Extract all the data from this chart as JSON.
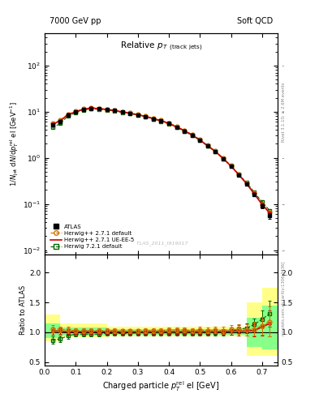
{
  "header_left": "7000 GeV pp",
  "header_right": "Soft QCD",
  "watermark": "ATLAS_2011_I919017",
  "right_label_top": "Rivet 3.1.10; ≥ 2.6M events",
  "right_label_bot": "mcplots.cern.ch [arXiv:1306.3436]",
  "atlas_x": [
    0.025,
    0.05,
    0.075,
    0.1,
    0.125,
    0.15,
    0.175,
    0.2,
    0.225,
    0.25,
    0.275,
    0.3,
    0.325,
    0.35,
    0.375,
    0.4,
    0.425,
    0.45,
    0.475,
    0.5,
    0.525,
    0.55,
    0.575,
    0.6,
    0.625,
    0.65,
    0.675,
    0.7,
    0.725
  ],
  "atlas_y": [
    5.2,
    6.2,
    8.5,
    9.8,
    11.2,
    11.8,
    11.5,
    11.0,
    10.5,
    9.8,
    9.2,
    8.5,
    7.8,
    7.0,
    6.3,
    5.5,
    4.6,
    3.8,
    3.1,
    2.4,
    1.8,
    1.35,
    0.95,
    0.65,
    0.42,
    0.27,
    0.16,
    0.09,
    0.055
  ],
  "atlas_yerr": [
    0.3,
    0.3,
    0.4,
    0.4,
    0.4,
    0.4,
    0.4,
    0.4,
    0.35,
    0.35,
    0.3,
    0.3,
    0.3,
    0.25,
    0.25,
    0.2,
    0.2,
    0.15,
    0.12,
    0.1,
    0.08,
    0.06,
    0.05,
    0.04,
    0.03,
    0.02,
    0.015,
    0.01,
    0.007
  ],
  "atlas_exl": [
    0.025,
    0.025,
    0.025,
    0.025,
    0.025,
    0.025,
    0.025,
    0.025,
    0.025,
    0.025,
    0.025,
    0.025,
    0.025,
    0.025,
    0.025,
    0.025,
    0.025,
    0.025,
    0.025,
    0.025,
    0.025,
    0.025,
    0.025,
    0.025,
    0.025,
    0.025,
    0.025,
    0.025,
    0.025
  ],
  "atlas_exr": [
    0.025,
    0.025,
    0.025,
    0.025,
    0.025,
    0.025,
    0.025,
    0.025,
    0.025,
    0.025,
    0.025,
    0.025,
    0.025,
    0.025,
    0.025,
    0.025,
    0.025,
    0.025,
    0.025,
    0.025,
    0.025,
    0.025,
    0.025,
    0.025,
    0.025,
    0.025,
    0.025,
    0.025,
    0.025
  ],
  "hw271_x": [
    0.025,
    0.05,
    0.075,
    0.1,
    0.125,
    0.15,
    0.175,
    0.2,
    0.225,
    0.25,
    0.275,
    0.3,
    0.325,
    0.35,
    0.375,
    0.4,
    0.425,
    0.45,
    0.475,
    0.5,
    0.525,
    0.55,
    0.575,
    0.6,
    0.625,
    0.65,
    0.675,
    0.7,
    0.725
  ],
  "hw271_y": [
    5.5,
    6.5,
    8.8,
    10.1,
    11.5,
    12.1,
    11.8,
    11.3,
    10.8,
    10.0,
    9.4,
    8.7,
    8.0,
    7.2,
    6.5,
    5.7,
    4.8,
    3.95,
    3.2,
    2.5,
    1.85,
    1.4,
    0.98,
    0.68,
    0.44,
    0.28,
    0.17,
    0.1,
    0.065
  ],
  "hw271_yerr": [
    0.2,
    0.2,
    0.3,
    0.3,
    0.3,
    0.3,
    0.3,
    0.3,
    0.25,
    0.25,
    0.25,
    0.25,
    0.2,
    0.2,
    0.2,
    0.15,
    0.15,
    0.12,
    0.1,
    0.08,
    0.06,
    0.05,
    0.04,
    0.03,
    0.025,
    0.018,
    0.012,
    0.008,
    0.006
  ],
  "hw271ue_x": [
    0.025,
    0.05,
    0.075,
    0.1,
    0.125,
    0.15,
    0.175,
    0.2,
    0.225,
    0.25,
    0.275,
    0.3,
    0.325,
    0.35,
    0.375,
    0.4,
    0.425,
    0.45,
    0.475,
    0.5,
    0.525,
    0.55,
    0.575,
    0.6,
    0.625,
    0.65,
    0.675,
    0.7,
    0.725
  ],
  "hw271ue_y": [
    5.3,
    6.3,
    8.6,
    9.9,
    11.3,
    11.9,
    11.6,
    11.1,
    10.6,
    9.85,
    9.25,
    8.55,
    7.85,
    7.05,
    6.35,
    5.55,
    4.65,
    3.85,
    3.12,
    2.42,
    1.82,
    1.37,
    0.96,
    0.66,
    0.43,
    0.275,
    0.165,
    0.098,
    0.063
  ],
  "hw271ue_yerr": [
    0.2,
    0.2,
    0.3,
    0.3,
    0.3,
    0.3,
    0.3,
    0.3,
    0.25,
    0.25,
    0.25,
    0.25,
    0.2,
    0.2,
    0.2,
    0.15,
    0.15,
    0.12,
    0.1,
    0.08,
    0.06,
    0.05,
    0.04,
    0.03,
    0.025,
    0.018,
    0.012,
    0.008,
    0.006
  ],
  "hw721_x": [
    0.025,
    0.05,
    0.075,
    0.1,
    0.125,
    0.15,
    0.175,
    0.2,
    0.225,
    0.25,
    0.275,
    0.3,
    0.325,
    0.35,
    0.375,
    0.4,
    0.425,
    0.45,
    0.475,
    0.5,
    0.525,
    0.55,
    0.575,
    0.6,
    0.625,
    0.65,
    0.675,
    0.7,
    0.725
  ],
  "hw721_y": [
    4.5,
    5.5,
    8.0,
    9.5,
    10.8,
    11.5,
    11.2,
    10.8,
    10.3,
    9.6,
    9.0,
    8.4,
    7.7,
    6.9,
    6.2,
    5.4,
    4.55,
    3.75,
    3.05,
    2.38,
    1.78,
    1.35,
    0.95,
    0.66,
    0.44,
    0.29,
    0.18,
    0.11,
    0.072
  ],
  "hw721_yerr": [
    0.2,
    0.2,
    0.3,
    0.3,
    0.3,
    0.3,
    0.3,
    0.3,
    0.25,
    0.25,
    0.25,
    0.25,
    0.2,
    0.2,
    0.2,
    0.15,
    0.15,
    0.12,
    0.1,
    0.08,
    0.06,
    0.05,
    0.04,
    0.03,
    0.025,
    0.018,
    0.012,
    0.008,
    0.006
  ],
  "ratio_x": [
    0.025,
    0.05,
    0.075,
    0.1,
    0.125,
    0.15,
    0.175,
    0.2,
    0.225,
    0.25,
    0.275,
    0.3,
    0.325,
    0.35,
    0.375,
    0.4,
    0.425,
    0.45,
    0.475,
    0.5,
    0.525,
    0.55,
    0.575,
    0.6,
    0.625,
    0.65,
    0.675,
    0.7,
    0.725
  ],
  "ratio_hw271_y": [
    1.06,
    1.05,
    1.04,
    1.03,
    1.03,
    1.03,
    1.03,
    1.03,
    1.03,
    1.02,
    1.02,
    1.02,
    1.03,
    1.03,
    1.03,
    1.04,
    1.04,
    1.04,
    1.03,
    1.04,
    1.03,
    1.04,
    1.03,
    1.05,
    1.05,
    1.04,
    1.06,
    1.11,
    1.18
  ],
  "ratio_hw271_yerr": [
    0.06,
    0.05,
    0.05,
    0.04,
    0.04,
    0.04,
    0.04,
    0.04,
    0.04,
    0.04,
    0.04,
    0.04,
    0.04,
    0.04,
    0.04,
    0.04,
    0.04,
    0.04,
    0.04,
    0.05,
    0.05,
    0.05,
    0.06,
    0.07,
    0.08,
    0.09,
    0.11,
    0.15,
    0.25
  ],
  "ratio_hw271ue_y": [
    1.02,
    1.02,
    1.01,
    1.01,
    1.01,
    1.01,
    1.01,
    1.01,
    1.01,
    1.01,
    1.01,
    1.01,
    1.01,
    1.01,
    1.01,
    1.01,
    1.01,
    1.01,
    1.01,
    1.01,
    1.01,
    1.01,
    1.01,
    1.02,
    1.02,
    1.02,
    1.03,
    1.09,
    1.15
  ],
  "ratio_hw271ue_yerr": [
    0.06,
    0.05,
    0.05,
    0.04,
    0.04,
    0.04,
    0.04,
    0.04,
    0.04,
    0.04,
    0.04,
    0.04,
    0.04,
    0.04,
    0.04,
    0.04,
    0.04,
    0.04,
    0.04,
    0.04,
    0.04,
    0.05,
    0.05,
    0.06,
    0.07,
    0.08,
    0.1,
    0.14,
    0.22
  ],
  "ratio_hw721_y": [
    0.87,
    0.89,
    0.94,
    0.97,
    0.97,
    0.97,
    0.97,
    0.98,
    0.98,
    0.98,
    0.98,
    0.99,
    0.99,
    0.99,
    0.99,
    0.99,
    0.99,
    0.99,
    0.99,
    0.99,
    0.99,
    1.0,
    1.0,
    1.02,
    1.05,
    1.07,
    1.13,
    1.22,
    1.31
  ],
  "ratio_hw721_yerr": [
    0.06,
    0.05,
    0.05,
    0.04,
    0.04,
    0.04,
    0.04,
    0.04,
    0.04,
    0.04,
    0.04,
    0.04,
    0.04,
    0.04,
    0.04,
    0.04,
    0.04,
    0.04,
    0.04,
    0.04,
    0.04,
    0.05,
    0.05,
    0.06,
    0.07,
    0.08,
    0.1,
    0.14,
    0.22
  ],
  "color_atlas": "#000000",
  "color_hw271": "#cc7700",
  "color_hw271ue": "#cc0000",
  "color_hw721": "#006600",
  "color_band_yellow": "#ffff88",
  "color_band_green": "#88ff88",
  "band_bins_x": [
    0.0,
    0.05,
    0.1,
    0.15,
    0.2,
    0.25,
    0.3,
    0.35,
    0.4,
    0.45,
    0.5,
    0.55,
    0.6,
    0.65,
    0.7,
    0.75
  ],
  "band_yellow_lo": [
    0.85,
    0.92,
    0.92,
    0.92,
    0.93,
    0.93,
    0.93,
    0.93,
    0.93,
    0.93,
    0.93,
    0.93,
    0.93,
    0.6,
    0.6,
    0.45
  ],
  "band_yellow_hi": [
    1.3,
    1.15,
    1.15,
    1.15,
    1.1,
    1.1,
    1.1,
    1.1,
    1.1,
    1.1,
    1.1,
    1.1,
    1.1,
    1.5,
    1.75,
    2.1
  ],
  "band_green_lo": [
    0.9,
    0.95,
    0.95,
    0.95,
    0.96,
    0.96,
    0.96,
    0.96,
    0.96,
    0.96,
    0.96,
    0.96,
    0.96,
    0.75,
    0.72,
    0.65
  ],
  "band_green_hi": [
    1.15,
    1.08,
    1.08,
    1.08,
    1.06,
    1.06,
    1.06,
    1.06,
    1.06,
    1.06,
    1.06,
    1.06,
    1.06,
    1.25,
    1.45,
    1.7
  ],
  "xlim": [
    0.0,
    0.75
  ],
  "ylim_main": [
    0.008,
    500
  ],
  "ylim_ratio": [
    0.45,
    2.3
  ],
  "yticks_ratio": [
    0.5,
    1.0,
    1.5,
    2.0
  ],
  "xticks": [
    0.0,
    0.1,
    0.2,
    0.3,
    0.4,
    0.5,
    0.6,
    0.7
  ]
}
